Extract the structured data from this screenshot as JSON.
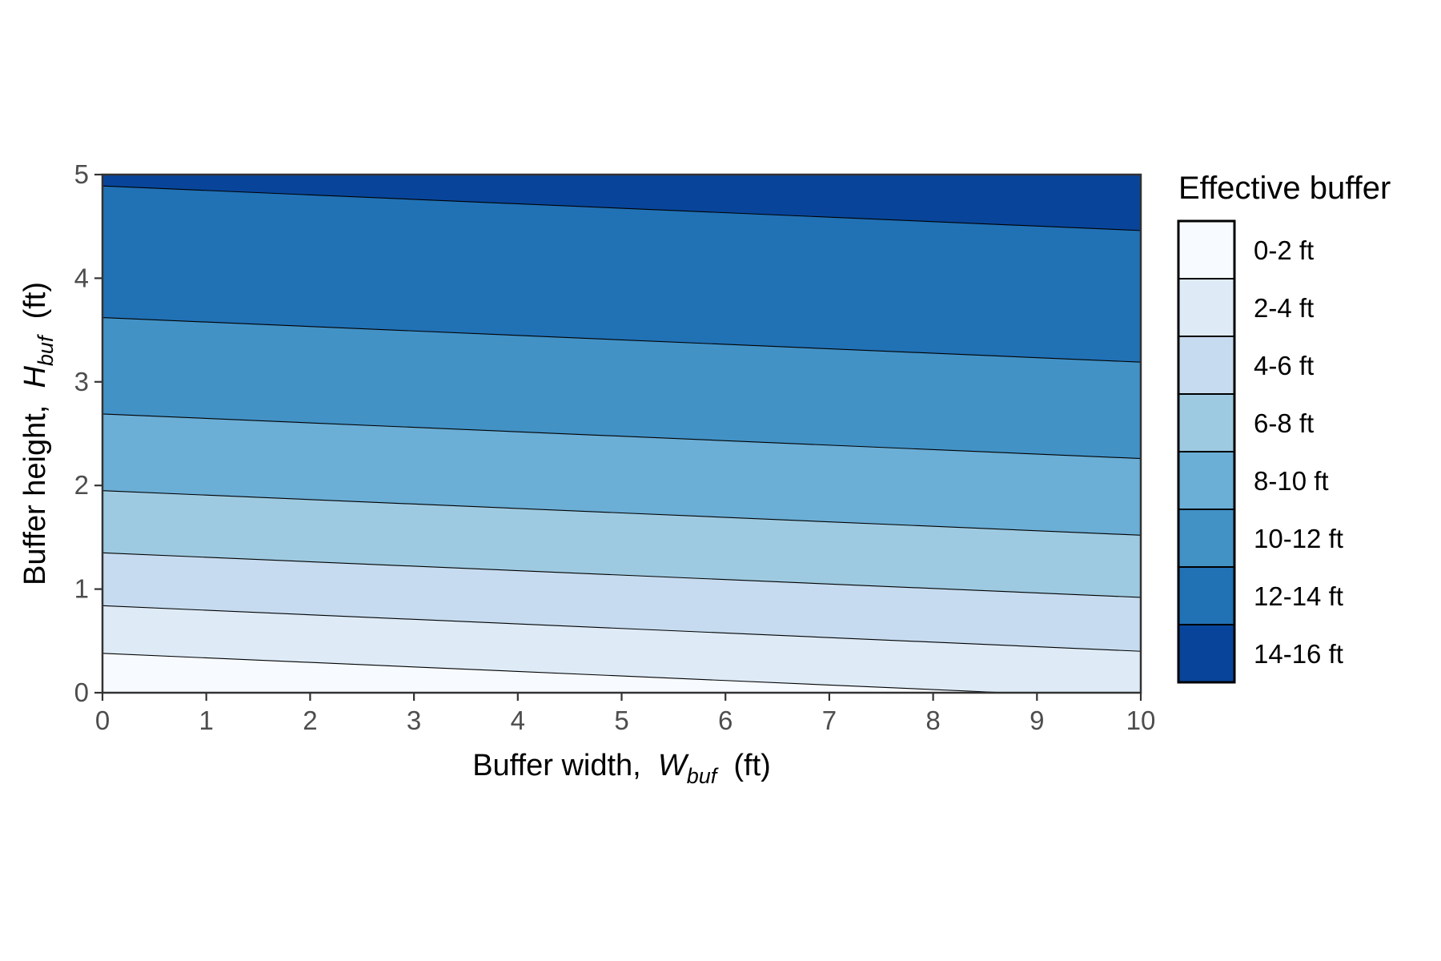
{
  "chart_data": {
    "type": "contour",
    "title": "",
    "xlabel": {
      "prefix": "Buffer width,  ",
      "symbol": "W",
      "subscript": "buf",
      "suffix": "  (ft)"
    },
    "ylabel": {
      "prefix": "Buffer height,  ",
      "symbol": "H",
      "subscript": "buf",
      "suffix": "  (ft)"
    },
    "xlim": [
      0,
      10
    ],
    "ylim": [
      0,
      5
    ],
    "xticks": [
      "0",
      "1",
      "2",
      "3",
      "4",
      "5",
      "6",
      "7",
      "8",
      "9",
      "10"
    ],
    "yticks": [
      "0",
      "1",
      "2",
      "3",
      "4",
      "5"
    ],
    "legend": {
      "title": "Effective buffer",
      "position": "right",
      "entries": [
        {
          "label": "0-2 ft",
          "color": "#F7FBFF"
        },
        {
          "label": "2-4 ft",
          "color": "#DEEBF7"
        },
        {
          "label": "4-6 ft",
          "color": "#C6DBEF"
        },
        {
          "label": "6-8 ft",
          "color": "#9ECAE1"
        },
        {
          "label": "8-10 ft",
          "color": "#6BAED6"
        },
        {
          "label": "10-12 ft",
          "color": "#4292C6"
        },
        {
          "label": "12-14 ft",
          "color": "#2171B5"
        },
        {
          "label": "14-16 ft",
          "color": "#08459A"
        }
      ]
    },
    "contour_levels_ft": [
      2,
      4,
      6,
      8,
      10,
      12,
      14
    ],
    "contour_lines": [
      {
        "level": 2,
        "points": [
          [
            0,
            0.38
          ],
          [
            8.7,
            0.0
          ]
        ]
      },
      {
        "level": 4,
        "points": [
          [
            0,
            0.84
          ],
          [
            10,
            0.4
          ]
        ]
      },
      {
        "level": 6,
        "points": [
          [
            0,
            1.35
          ],
          [
            10,
            0.92
          ]
        ]
      },
      {
        "level": 8,
        "points": [
          [
            0,
            1.95
          ],
          [
            10,
            1.52
          ]
        ]
      },
      {
        "level": 10,
        "points": [
          [
            0,
            2.69
          ],
          [
            10,
            2.26
          ]
        ]
      },
      {
        "level": 12,
        "points": [
          [
            0,
            3.62
          ],
          [
            10,
            3.19
          ]
        ]
      },
      {
        "level": 14,
        "points": [
          [
            0,
            4.89
          ],
          [
            10,
            4.46
          ]
        ]
      }
    ]
  }
}
